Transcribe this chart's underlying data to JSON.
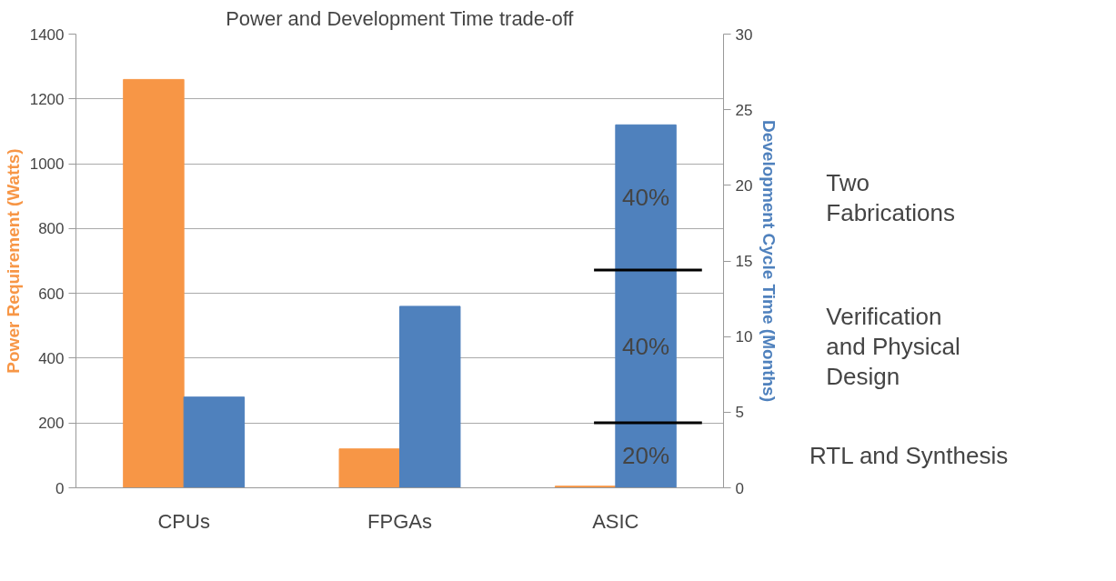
{
  "chart_data": {
    "type": "bar",
    "title": "Power and Development Time trade-off",
    "ylabel": "Power Requirement (Watts)",
    "y2label": "Development Cycle Time (Months)",
    "categories": [
      "CPUs",
      "FPGAs",
      "ASIC"
    ],
    "series": [
      {
        "color": "#f79646",
        "values": [
          1260,
          120,
          5
        ]
      },
      {
        "color": "#4f81bd",
        "values": [
          6,
          12,
          24
        ],
        "axis": "y2"
      }
    ],
    "ylim": [
      0,
      1400
    ],
    "yticks": [
      0,
      200,
      400,
      600,
      800,
      1000,
      1200,
      1400
    ],
    "y2lim": [
      0,
      30
    ],
    "y2ticks": [
      0,
      5,
      10,
      15,
      20,
      25,
      30
    ],
    "grid": "y",
    "ref_lines": [
      {
        "axis": "y2",
        "value": 14.4,
        "label": null,
        "color": "#000000"
      },
      {
        "axis": "y2",
        "value": 4.3,
        "label": null,
        "color": "#000000"
      }
    ],
    "annotations": [
      "40%",
      "40%",
      "20%",
      "Two\nFabrications",
      "Verification\nand Physical\nDesign",
      "RTL and Synthesis"
    ]
  }
}
